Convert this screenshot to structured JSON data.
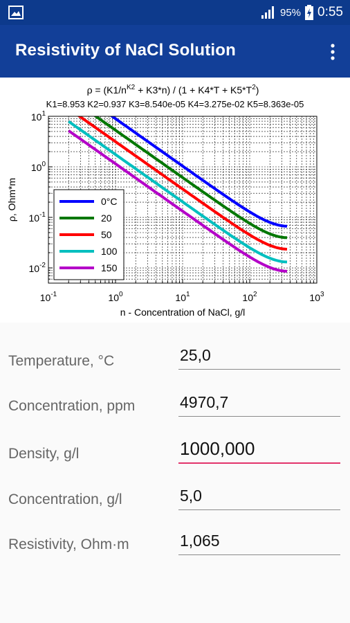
{
  "status_bar": {
    "battery": "95%",
    "time": "0:55",
    "icons": [
      "image-icon",
      "signal-icon",
      "battery-charging-icon"
    ]
  },
  "app_bar": {
    "title": "Resistivity of NaCl Solution",
    "menu_icon": "more-vert-icon"
  },
  "chart_data": {
    "type": "line",
    "title": {
      "line1_prefix": "ρ = (K1/n",
      "line1_sup1": "K2",
      "line1_mid": " +  K3*n) / (1 + K4*T + K5*T",
      "line1_sup2": "2",
      "line1_suffix": ")",
      "line2": "K1=8.953 K2=0.937 K3=8.540e-05 K4=3.275e-02 K5=8.363e-05"
    },
    "xlabel": "n - Concentration of NaCl, g/l",
    "ylabel": "ρ, Ohm*m",
    "xscale": "log",
    "yscale": "log",
    "xlim": [
      0.1,
      1000
    ],
    "ylim": [
      0.005,
      10
    ],
    "x_ticks": [
      {
        "base": "10",
        "exp": "-1",
        "value": 0.1
      },
      {
        "base": "10",
        "exp": "0",
        "value": 1
      },
      {
        "base": "10",
        "exp": "1",
        "value": 10
      },
      {
        "base": "10",
        "exp": "2",
        "value": 100
      },
      {
        "base": "10",
        "exp": "3",
        "value": 1000
      }
    ],
    "y_ticks": [
      {
        "base": "10",
        "exp": "-2",
        "value": 0.01
      },
      {
        "base": "10",
        "exp": "-1",
        "value": 0.1
      },
      {
        "base": "10",
        "exp": "0",
        "value": 1
      },
      {
        "base": "10",
        "exp": "1",
        "value": 10
      }
    ],
    "grid": true,
    "legend_position": "bottom-left",
    "constants": {
      "K1": 8.953,
      "K2": 0.937,
      "K3": 8.54e-05,
      "K4": 0.03275,
      "K5": 8.363e-05
    },
    "x_range": [
      0.2,
      360
    ],
    "series": [
      {
        "name": "0°C",
        "T": 0,
        "color": "#0000ff"
      },
      {
        "name": "20",
        "T": 20,
        "color": "#007700"
      },
      {
        "name": "50",
        "T": 50,
        "color": "#ff0000"
      },
      {
        "name": "100",
        "T": 100,
        "color": "#00bfbf"
      },
      {
        "name": "150",
        "T": 150,
        "color": "#b400c8"
      }
    ]
  },
  "form": {
    "fields": [
      {
        "label": "Temperature, °C",
        "value": "25,0"
      },
      {
        "label": "Concentration, ppm",
        "value": "4970,7"
      },
      {
        "label": "Density, g/l",
        "value": "1000,000"
      },
      {
        "label": "Concentration, g/l",
        "value": "5,0"
      },
      {
        "label": "Resistivity, Ohm·m",
        "value": "1,065"
      }
    ]
  }
}
